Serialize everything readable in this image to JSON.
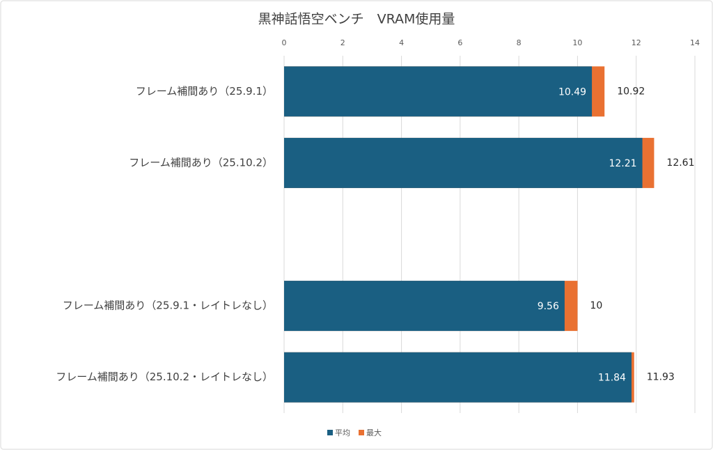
{
  "chart_data": {
    "type": "bar",
    "orientation": "horizontal",
    "bar_layout": "overlap",
    "title": "黒神話悟空ベンチ　VRAM使用量",
    "categories": [
      "フレーム補間あり（25.9.1）",
      "フレーム補間あり（25.10.2）",
      null,
      "フレーム補間あり（25.9.1・レイトレなし）",
      "フレーム補間あり（25.10.2・レイトレなし）"
    ],
    "series": [
      {
        "name": "平均",
        "color": "#1a5f82",
        "values": [
          10.49,
          12.21,
          null,
          9.56,
          11.84
        ]
      },
      {
        "name": "最大",
        "color": "#e97132",
        "values": [
          10.92,
          12.61,
          null,
          10,
          11.93
        ]
      }
    ],
    "xlim": [
      0,
      14
    ],
    "xticks": [
      0,
      2,
      4,
      6,
      8,
      10,
      12,
      14
    ],
    "grid": true,
    "legend": "bottom"
  }
}
